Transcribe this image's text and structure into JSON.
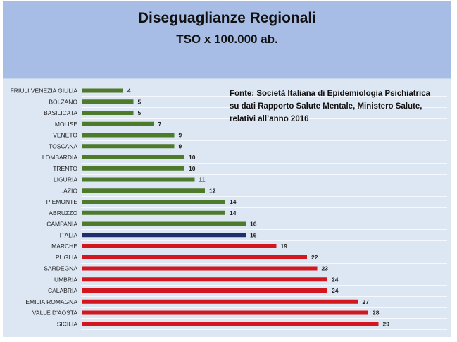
{
  "title": "Diseguaglianze Regionali",
  "subtitle": "TSO x 100.000 ab.",
  "note": [
    "Fonte: Società Italiana di Epidemiologia Psichiatrica",
    "su dati Rapporto Salute Mentale, Ministero Salute,",
    "relativi all’anno 2016"
  ],
  "colors": {
    "below": "#4e7a2c",
    "italia": "#1f2d6b",
    "above": "#d2171f"
  },
  "chart_data": {
    "type": "bar",
    "orientation": "horizontal",
    "title": "Diseguaglianze Regionali",
    "subtitle": "TSO x 100.000 ab.",
    "categories": [
      "FRIULI VENEZIA GIULIA",
      "BOLZANO",
      "BASILICATA",
      "MOLISE",
      "VENETO",
      "TOSCANA",
      "LOMBARDIA",
      "TRENTO",
      "LIGURIA",
      "LAZIO",
      "PIEMONTE",
      "ABRUZZO",
      "CAMPANIA",
      "ITALIA",
      "MARCHE",
      "PUGLIA",
      "SARDEGNA",
      "UMBRIA",
      "CALABRIA",
      "EMILIA ROMAGNA",
      "VALLE D'AOSTA",
      "SICILIA"
    ],
    "values": [
      4,
      5,
      5,
      7,
      9,
      9,
      10,
      10,
      11,
      12,
      14,
      14,
      16,
      16,
      19,
      22,
      23,
      24,
      24,
      27,
      28,
      29
    ],
    "groups": [
      "below",
      "below",
      "below",
      "below",
      "below",
      "below",
      "below",
      "below",
      "below",
      "below",
      "below",
      "below",
      "below",
      "italia",
      "above",
      "above",
      "above",
      "above",
      "above",
      "above",
      "above",
      "above"
    ],
    "xlim": [
      0,
      29
    ]
  }
}
